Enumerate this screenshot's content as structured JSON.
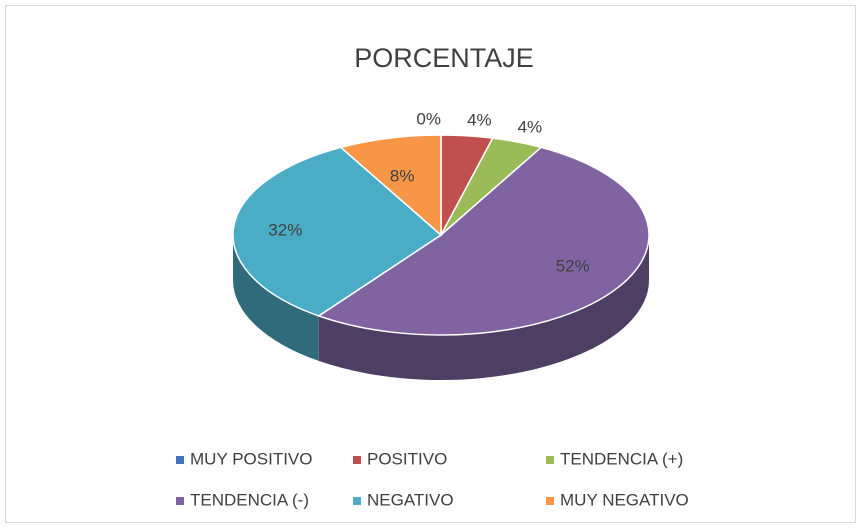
{
  "chart_data": {
    "type": "pie",
    "title": "PORCENTAJE",
    "series": [
      {
        "name": "PORCENTAJE",
        "categories": [
          "MUY POSITIVO",
          "POSITIVO",
          "TENDENCIA (+)",
          "TENDENCIA (-)",
          "NEGATIVO",
          "MUY NEGATIVO"
        ],
        "values": [
          0,
          4,
          4,
          52,
          32,
          8
        ],
        "value_labels": [
          "0%",
          "4%",
          "4%",
          "52%",
          "32%",
          "8%"
        ],
        "colors": [
          "#4472c4",
          "#c0504d",
          "#9bbb59",
          "#8064a2",
          "#4bacc6",
          "#f79646"
        ]
      }
    ],
    "legend": "bottom"
  }
}
